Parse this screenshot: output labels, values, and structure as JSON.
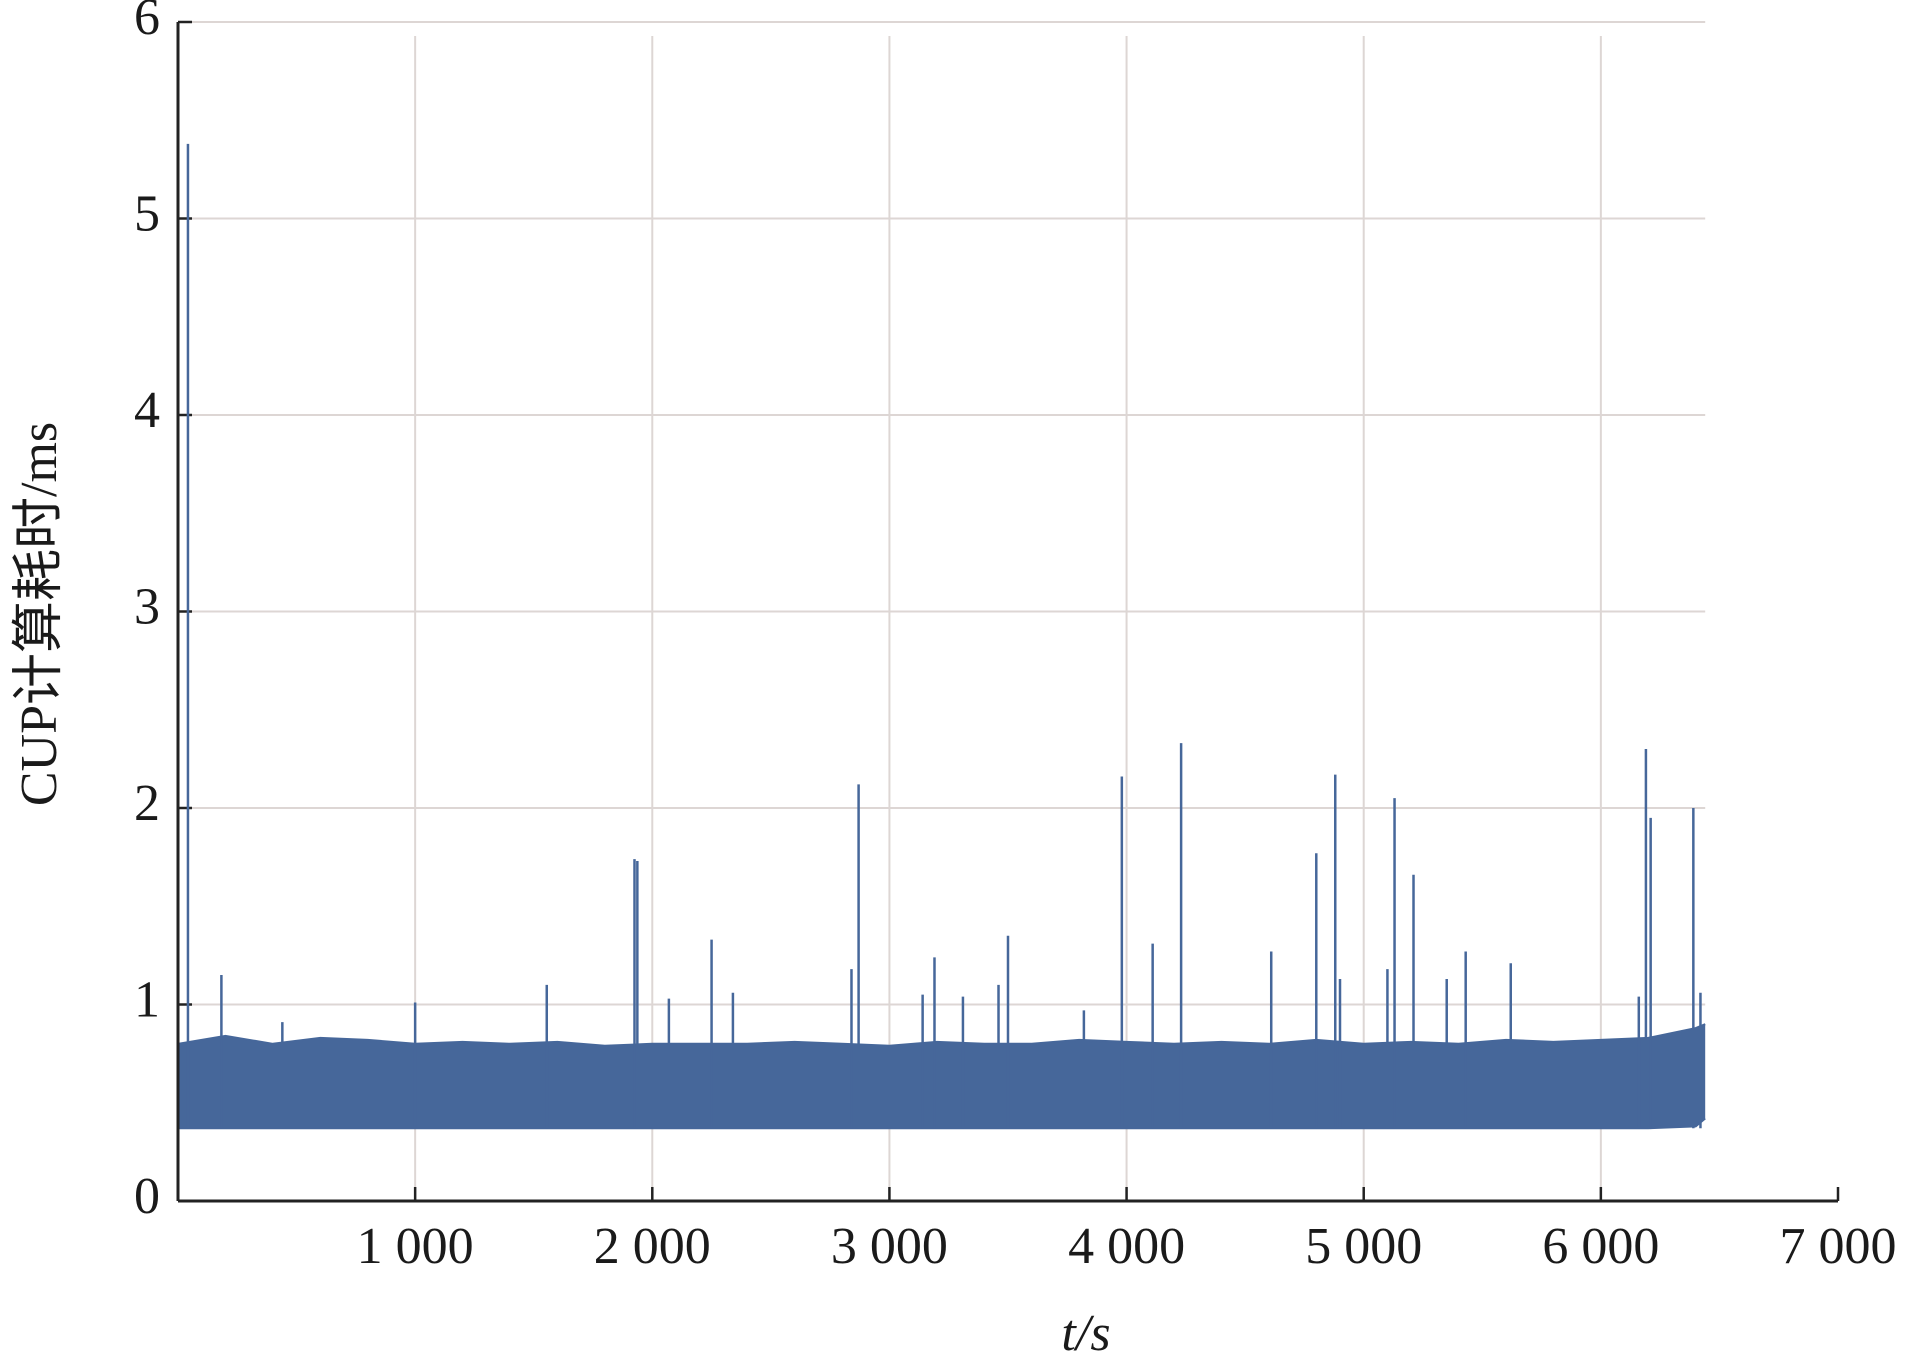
{
  "chart_data": {
    "type": "line",
    "ylabel": "CUP计算耗时/ms",
    "xlabel": "t/s",
    "color": "#46679a",
    "grid": true,
    "xlim": [
      0,
      7000
    ],
    "ylim": [
      0,
      6
    ],
    "xticks": [
      {
        "value": 1000,
        "label": "1 000"
      },
      {
        "value": 2000,
        "label": "2 000"
      },
      {
        "value": 3000,
        "label": "3 000"
      },
      {
        "value": 4000,
        "label": "4 000"
      },
      {
        "value": 5000,
        "label": "5 000"
      },
      {
        "value": 6000,
        "label": "6 000"
      },
      {
        "value": 7000,
        "label": "7 000"
      }
    ],
    "yticks": [
      0,
      1,
      2,
      3,
      4,
      5,
      6
    ],
    "x": [
      0,
      200,
      400,
      600,
      800,
      1000,
      1200,
      1400,
      1600,
      1800,
      2000,
      2200,
      2400,
      2600,
      2800,
      3000,
      3200,
      3400,
      3600,
      3800,
      4000,
      4200,
      4400,
      4600,
      4800,
      5000,
      5200,
      5400,
      5600,
      5800,
      6000,
      6200,
      6400,
      6440
    ],
    "series": [
      {
        "values": [
          0.8,
          0.84,
          0.8,
          0.83,
          0.82,
          0.8,
          0.81,
          0.8,
          0.81,
          0.79,
          0.8,
          0.8,
          0.8,
          0.81,
          0.8,
          0.79,
          0.81,
          0.8,
          0.8,
          0.82,
          0.81,
          0.8,
          0.81,
          0.8,
          0.82,
          0.8,
          0.81,
          0.8,
          0.82,
          0.81,
          0.82,
          0.83,
          0.88,
          0.9
        ]
      },
      {
        "values": [
          0.37,
          0.37,
          0.37,
          0.37,
          0.37,
          0.37,
          0.37,
          0.37,
          0.37,
          0.37,
          0.37,
          0.37,
          0.37,
          0.37,
          0.37,
          0.37,
          0.37,
          0.37,
          0.37,
          0.37,
          0.37,
          0.37,
          0.37,
          0.37,
          0.37,
          0.37,
          0.37,
          0.37,
          0.37,
          0.37,
          0.37,
          0.37,
          0.38,
          0.42
        ]
      }
    ],
    "spikes": {
      "x": [
        42,
        183,
        440,
        1000,
        1555,
        1925,
        1937,
        2070,
        2250,
        2340,
        2840,
        2870,
        3140,
        3190,
        3310,
        3460,
        3500,
        3820,
        3980,
        4110,
        4230,
        4610,
        4800,
        4880,
        4900,
        5100,
        5130,
        5210,
        5350,
        5430,
        5620,
        6160,
        6190,
        6210,
        6390,
        6420
      ],
      "values": [
        5.38,
        1.15,
        0.91,
        1.01,
        1.1,
        1.74,
        1.73,
        1.03,
        1.33,
        1.06,
        1.18,
        2.12,
        1.05,
        1.24,
        1.04,
        1.1,
        1.35,
        0.97,
        2.16,
        1.31,
        2.33,
        1.27,
        1.77,
        2.17,
        1.13,
        1.18,
        2.05,
        1.66,
        1.13,
        1.27,
        1.21,
        1.04,
        2.3,
        1.95,
        2.0,
        1.06
      ]
    }
  }
}
